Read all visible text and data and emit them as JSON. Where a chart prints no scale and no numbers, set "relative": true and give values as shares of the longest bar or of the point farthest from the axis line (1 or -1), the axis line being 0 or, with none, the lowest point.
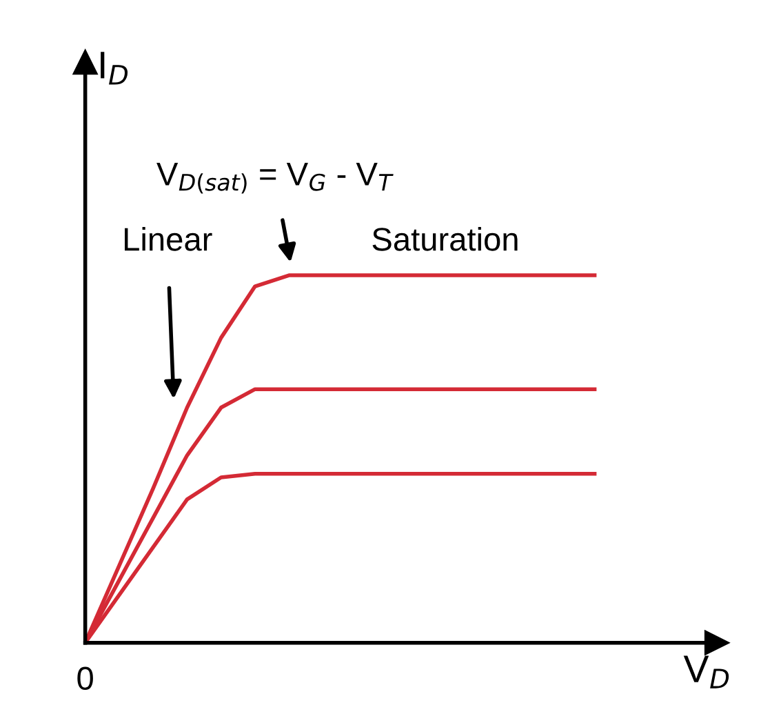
{
  "chart_data": {
    "type": "line",
    "relative": true,
    "xlabel": "V$_{D}$",
    "ylabel": "I$_{D}$",
    "categories": [
      null,
      null,
      null,
      null,
      null,
      null,
      null,
      null,
      null,
      null,
      null,
      null,
      null,
      null,
      null,
      null
    ],
    "series": [
      {
        "color": "#d42a35",
        "values": [
          0,
          0.21,
          0.42,
          0.64,
          0.83,
          0.97,
          1,
          1,
          1,
          1,
          1,
          1,
          1,
          1,
          1,
          1
        ]
      },
      {
        "color": "#d42a35",
        "values": [
          0,
          0.17,
          0.34,
          0.51,
          0.64,
          0.69,
          0.69,
          0.69,
          0.69,
          0.69,
          0.69,
          0.69,
          0.69,
          0.69,
          0.69,
          0.69
        ]
      },
      {
        "color": "#d42a35",
        "values": [
          0,
          0.13,
          0.26,
          0.39,
          0.45,
          0.46,
          0.46,
          0.46,
          0.46,
          0.46,
          0.46,
          0.46,
          0.46,
          0.46,
          0.46,
          0.46
        ]
      }
    ],
    "annotations": [
      "Linear",
      "Saturation",
      "V$_{D(sat)}$ = V$_{G}$ - V$_{T}$",
      "0"
    ],
    "legend": false,
    "marker": "none",
    "line_style": "solid"
  }
}
